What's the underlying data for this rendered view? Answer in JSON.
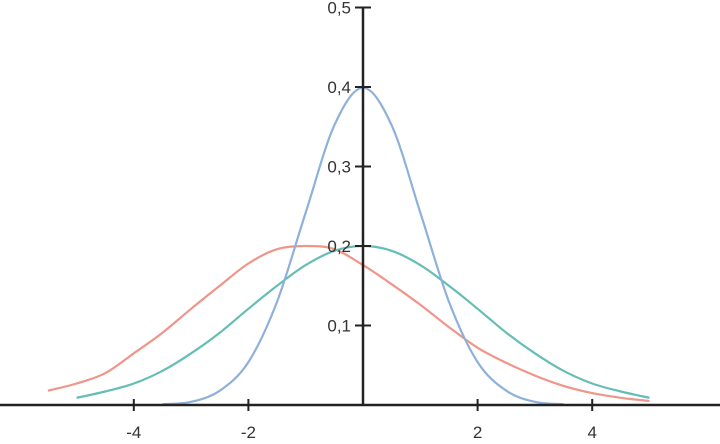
{
  "chart_data": {
    "type": "line",
    "title": "",
    "xlabel": "",
    "ylabel": "",
    "xlim": [
      -6.3,
      6.3
    ],
    "ylim": [
      0,
      0.5
    ],
    "grid": false,
    "legend": "none",
    "x_ticks": [
      {
        "value": -4,
        "label": "-4"
      },
      {
        "value": -2,
        "label": "-2"
      },
      {
        "value": 2,
        "label": "2"
      },
      {
        "value": 4,
        "label": "4"
      }
    ],
    "y_ticks": [
      {
        "value": 0.1,
        "label": "0,1"
      },
      {
        "value": 0.2,
        "label": "0,2"
      },
      {
        "value": 0.3,
        "label": "0,3"
      },
      {
        "value": 0.4,
        "label": "0,4"
      },
      {
        "value": 0.5,
        "label": "0,5"
      }
    ],
    "series": [
      {
        "color": "#f0958a",
        "x": [
          -5.5,
          -5,
          -4.5,
          -4,
          -3.5,
          -3,
          -2.5,
          -2,
          -1.5,
          -1,
          -0.5,
          0,
          0.5,
          1,
          1.5,
          2,
          2.5,
          3,
          3.5,
          4,
          4.5,
          5
        ],
        "y": [
          0.018,
          0.027,
          0.04,
          0.065,
          0.091,
          0.121,
          0.15,
          0.178,
          0.196,
          0.2,
          0.196,
          0.176,
          0.152,
          0.126,
          0.098,
          0.072,
          0.053,
          0.037,
          0.024,
          0.015,
          0.009,
          0.005
        ]
      },
      {
        "color": "#66bdb6",
        "x": [
          -5,
          -4.5,
          -4,
          -3.5,
          -3,
          -2.5,
          -2,
          -1.5,
          -1,
          -0.5,
          0,
          0.5,
          1,
          1.5,
          2,
          2.5,
          3,
          3.5,
          4,
          4.5,
          5
        ],
        "y": [
          0.009,
          0.017,
          0.027,
          0.043,
          0.065,
          0.091,
          0.121,
          0.15,
          0.176,
          0.194,
          0.2,
          0.194,
          0.176,
          0.15,
          0.121,
          0.091,
          0.065,
          0.043,
          0.027,
          0.017,
          0.009
        ]
      },
      {
        "color": "#8fb1d9",
        "x": [
          -3.5,
          -3,
          -2.5,
          -2,
          -1.5,
          -1,
          -0.5,
          0,
          0.5,
          1,
          1.5,
          2,
          2.5,
          3,
          3.5
        ],
        "y": [
          0.001,
          0.004,
          0.018,
          0.054,
          0.13,
          0.242,
          0.352,
          0.399,
          0.352,
          0.242,
          0.13,
          0.054,
          0.018,
          0.004,
          0.001
        ]
      }
    ]
  }
}
